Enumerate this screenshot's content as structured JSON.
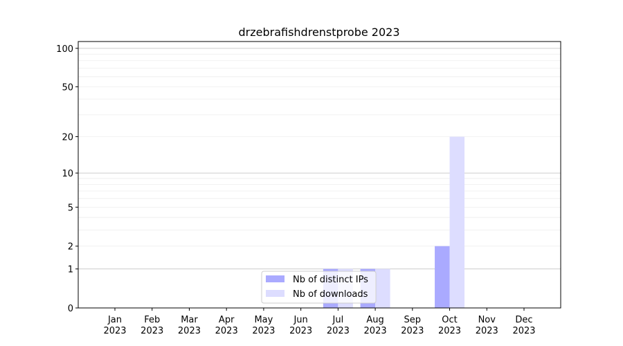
{
  "chart_data": {
    "type": "bar",
    "title": "drzebrafishdrenstprobe 2023",
    "xlabel": "",
    "ylabel": "",
    "yscale": "log(1+y)",
    "ylim": [
      0,
      113
    ],
    "yticks": [
      0,
      1,
      2,
      5,
      10,
      20,
      50,
      100
    ],
    "grid": true,
    "legend_position": "bottom-center",
    "categories": [
      "Jan\n2023",
      "Feb\n2023",
      "Mar\n2023",
      "Apr\n2023",
      "May\n2023",
      "Jun\n2023",
      "Jul\n2023",
      "Aug\n2023",
      "Sep\n2023",
      "Oct\n2023",
      "Nov\n2023",
      "Dec\n2023"
    ],
    "series": [
      {
        "name": "Nb of distinct IPs",
        "color": "#aaaaff",
        "values": [
          0,
          0,
          0,
          0,
          0,
          0,
          1,
          1,
          0,
          2,
          0,
          0
        ]
      },
      {
        "name": "Nb of downloads",
        "color": "#ddddff",
        "values": [
          0,
          0,
          0,
          0,
          0,
          0,
          1,
          1,
          0,
          20,
          0,
          0
        ]
      }
    ]
  }
}
